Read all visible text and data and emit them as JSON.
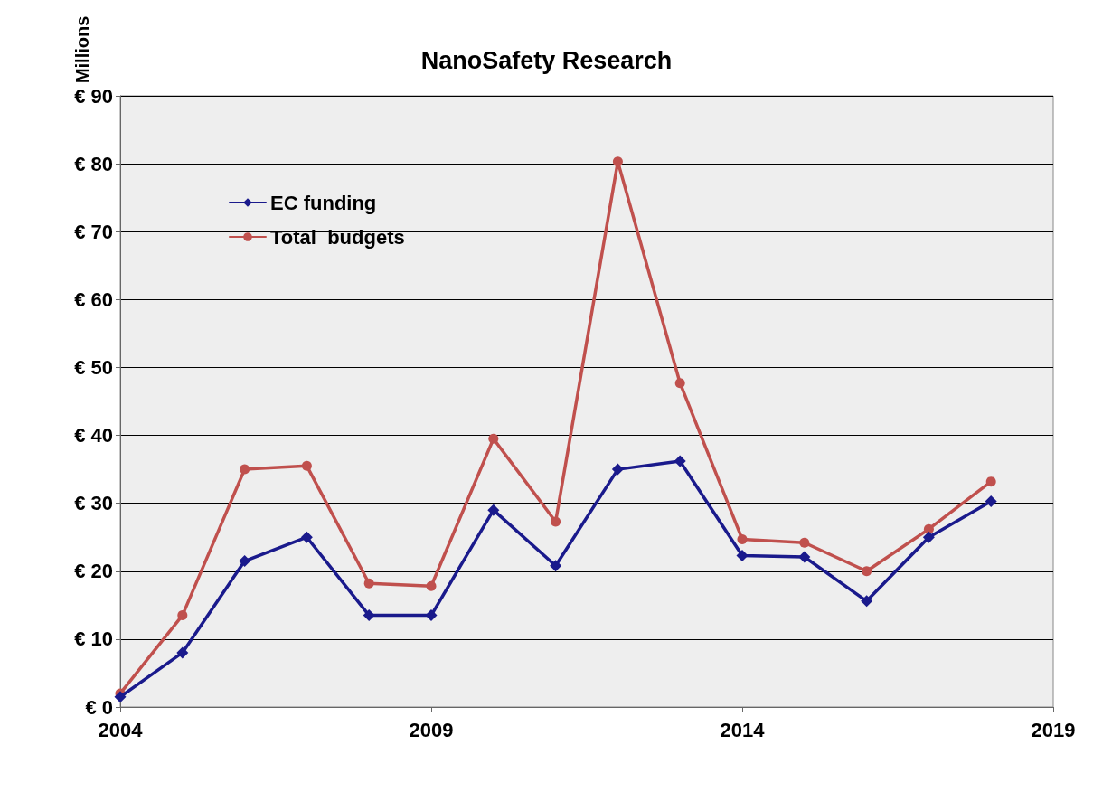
{
  "chart_data": {
    "type": "line",
    "title": "NanoSafety Research",
    "ylabel": "Millions",
    "x": [
      2004,
      2005,
      2006,
      2007,
      2008,
      2009,
      2010,
      2011,
      2012,
      2013,
      2014,
      2015,
      2016,
      2017,
      2018
    ],
    "series": [
      {
        "name": "EC funding",
        "color": "#1a1a8c",
        "marker": "diamond",
        "values": [
          1.5,
          8,
          21.5,
          25,
          13.5,
          13.5,
          29,
          20.8,
          35,
          36.2,
          22.3,
          22.1,
          15.6,
          25,
          30.3
        ]
      },
      {
        "name": "Total  budgets",
        "color": "#c0504d",
        "marker": "circle",
        "values": [
          2,
          13.5,
          35,
          35.5,
          18.2,
          17.8,
          39.5,
          27.3,
          80.3,
          47.7,
          24.7,
          24.2,
          20,
          26.2,
          33.2
        ]
      }
    ],
    "xlim": [
      2004,
      2019
    ],
    "xticks": [
      2004,
      2009,
      2014,
      2019
    ],
    "ylim": [
      0,
      90
    ],
    "yticks": [
      {
        "value": 0,
        "label": "€ 0"
      },
      {
        "value": 10,
        "label": "€ 10"
      },
      {
        "value": 20,
        "label": "€ 20"
      },
      {
        "value": 30,
        "label": "€ 30"
      },
      {
        "value": 40,
        "label": "€ 40"
      },
      {
        "value": 50,
        "label": "€ 50"
      },
      {
        "value": 60,
        "label": "€ 60"
      },
      {
        "value": 70,
        "label": "€ 70"
      },
      {
        "value": 80,
        "label": "€ 80"
      },
      {
        "value": 90,
        "label": "€ 90"
      }
    ],
    "grid": "y",
    "legend": "top left",
    "line_style": "solid"
  }
}
